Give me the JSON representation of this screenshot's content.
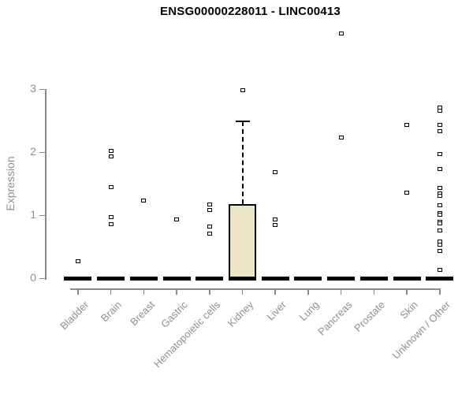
{
  "chart_data": {
    "type": "box",
    "title": "ENSG00000228011 - LINC00413",
    "ylabel": "Expression",
    "xlabel": "",
    "ylim": [
      0,
      3
    ],
    "yticks": [
      0,
      1,
      2,
      3
    ],
    "grid": false,
    "legend": null,
    "categories": [
      "Bladder",
      "Brain",
      "Breast",
      "Gastric",
      "Hematopoietic cells",
      "Kidney",
      "Liver",
      "Lung",
      "Pancreas",
      "Prostate",
      "Skin",
      "Unknown / Other"
    ],
    "boxes": [
      {
        "category": "Bladder",
        "q1": 0,
        "median": 0,
        "q3": 0,
        "whisker_low": 0,
        "whisker_high": 0,
        "outliers": [
          0.27
        ]
      },
      {
        "category": "Brain",
        "q1": 0,
        "median": 0,
        "q3": 0,
        "whisker_low": 0,
        "whisker_high": 0,
        "outliers": [
          2.02,
          1.94,
          1.45,
          0.97,
          0.86
        ]
      },
      {
        "category": "Breast",
        "q1": 0,
        "median": 0,
        "q3": 0,
        "whisker_low": 0,
        "whisker_high": 0,
        "outliers": [
          1.23
        ]
      },
      {
        "category": "Gastric",
        "q1": 0,
        "median": 0,
        "q3": 0,
        "whisker_low": 0,
        "whisker_high": 0,
        "outliers": [
          0.93
        ]
      },
      {
        "category": "Hematopoietic cells",
        "q1": 0,
        "median": 0,
        "q3": 0,
        "whisker_low": 0,
        "whisker_high": 0,
        "outliers": [
          1.17,
          1.09,
          0.82,
          0.71
        ]
      },
      {
        "category": "Kidney",
        "q1": 0,
        "median": 0,
        "q3": 1.18,
        "whisker_low": 0,
        "whisker_high": 2.49,
        "outliers": [
          2.99
        ]
      },
      {
        "category": "Liver",
        "q1": 0,
        "median": 0,
        "q3": 0,
        "whisker_low": 0,
        "whisker_high": 0,
        "outliers": [
          1.68,
          0.93,
          0.85
        ]
      },
      {
        "category": "Lung",
        "q1": 0,
        "median": 0,
        "q3": 0,
        "whisker_low": 0,
        "whisker_high": 0,
        "outliers": []
      },
      {
        "category": "Pancreas",
        "q1": 0,
        "median": 0,
        "q3": 0,
        "whisker_low": 0,
        "whisker_high": 0,
        "outliers": [
          3.89,
          2.23
        ]
      },
      {
        "category": "Prostate",
        "q1": 0,
        "median": 0,
        "q3": 0,
        "whisker_low": 0,
        "whisker_high": 0,
        "outliers": []
      },
      {
        "category": "Skin",
        "q1": 0,
        "median": 0,
        "q3": 0,
        "whisker_low": 0,
        "whisker_high": 0,
        "outliers": [
          2.43,
          1.36
        ]
      },
      {
        "category": "Unknown / Other",
        "q1": 0,
        "median": 0,
        "q3": 0,
        "whisker_low": 0,
        "whisker_high": 0,
        "outliers": [
          2.71,
          2.66,
          2.43,
          2.33,
          1.97,
          1.74,
          1.44,
          1.35,
          1.31,
          1.16,
          1.04,
          1.01,
          0.9,
          0.87,
          0.76,
          0.58,
          0.54,
          0.43,
          0.13
        ]
      }
    ],
    "colors": {
      "box_fill": "#ece5c6",
      "box_border": "#000000",
      "median": "#000000",
      "whisker": "#000000",
      "outlier_fill": "#ffffff",
      "outlier_border": "#000000",
      "axis": "#8a8a8a",
      "tick_label": "#8f8f8f",
      "title": "#000000",
      "background": "#ffffff"
    }
  }
}
